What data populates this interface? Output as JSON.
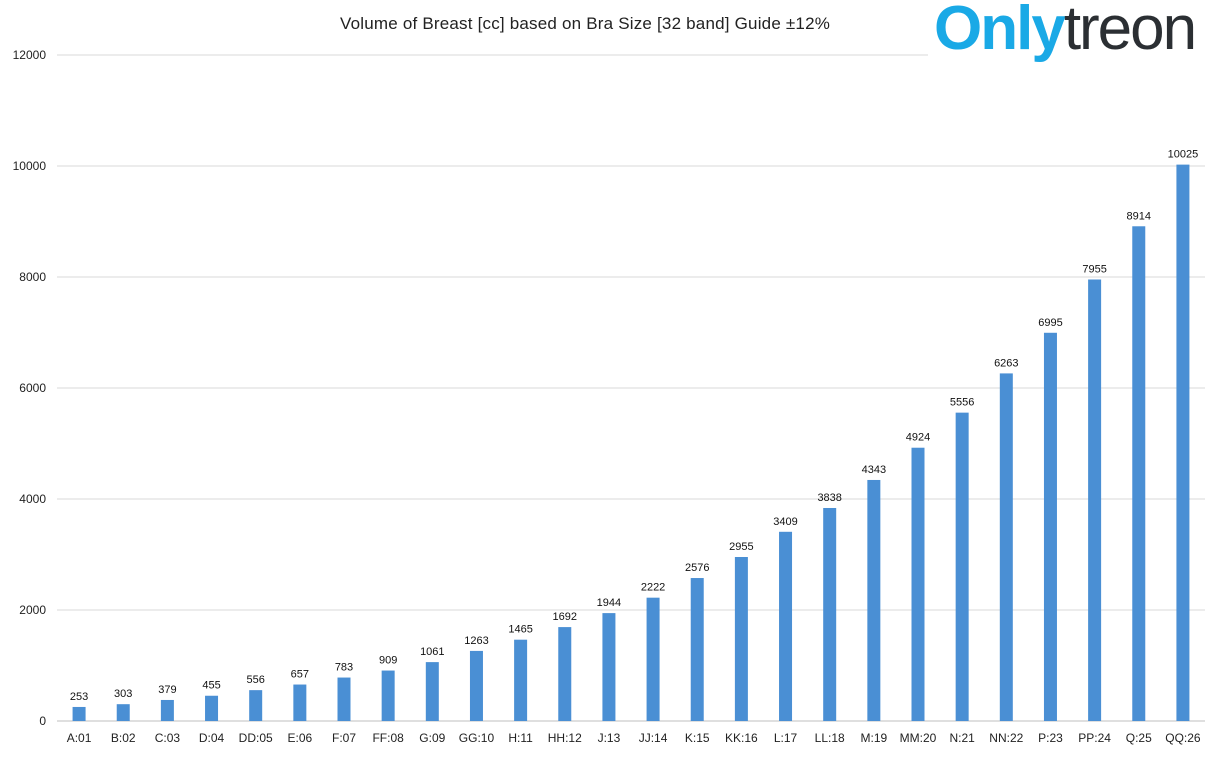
{
  "chart_data": {
    "type": "bar",
    "title": "Volume of Breast [cc] based on Bra Size [32 band] Guide ±12%",
    "xlabel": "",
    "ylabel": "",
    "ylim": [
      0,
      12000
    ],
    "yticks": [
      0,
      2000,
      4000,
      6000,
      8000,
      10000,
      12000
    ],
    "grid": true,
    "bar_color": "#4a8fd4",
    "categories": [
      "A:01",
      "B:02",
      "C:03",
      "D:04",
      "DD:05",
      "E:06",
      "F:07",
      "FF:08",
      "G:09",
      "GG:10",
      "H:11",
      "HH:12",
      "J:13",
      "JJ:14",
      "K:15",
      "KK:16",
      "L:17",
      "LL:18",
      "M:19",
      "MM:20",
      "N:21",
      "NN:22",
      "P:23",
      "PP:24",
      "Q:25",
      "QQ:26"
    ],
    "values": [
      253,
      303,
      379,
      455,
      556,
      657,
      783,
      909,
      1061,
      1263,
      1465,
      1692,
      1944,
      2222,
      2576,
      2955,
      3409,
      3838,
      4343,
      4924,
      5556,
      6263,
      6995,
      7955,
      8914,
      10025
    ]
  },
  "watermark": {
    "part1": "Only",
    "part2": "treon",
    "color1": "#1aa9e6",
    "color2": "#2b2f33"
  }
}
